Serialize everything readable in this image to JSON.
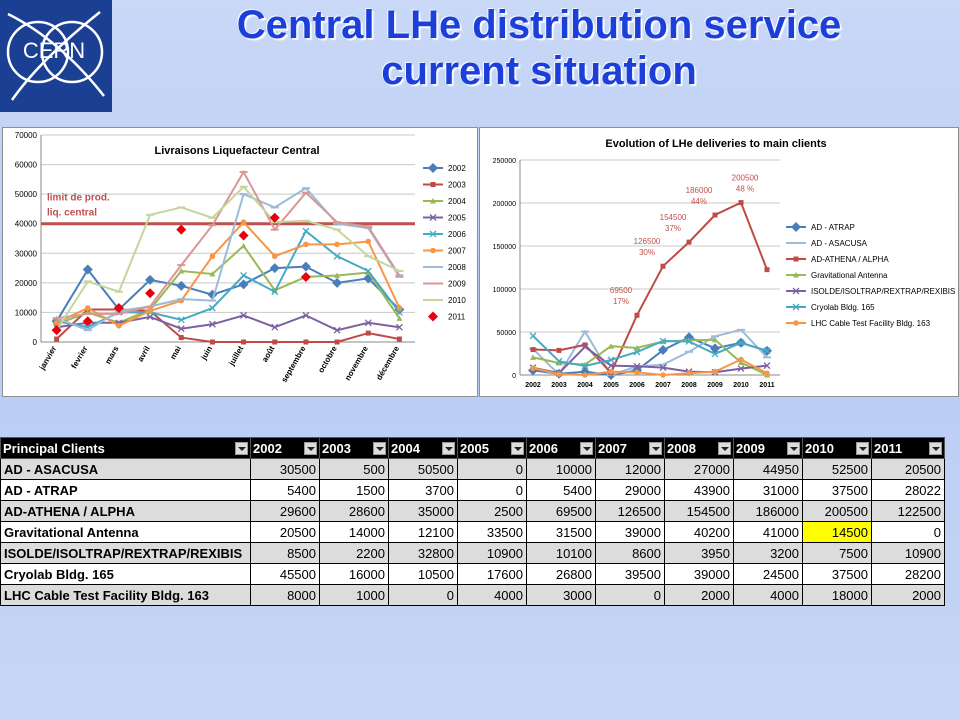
{
  "slide": {
    "title_line1": "Central LHe distribution service",
    "title_line2": "current situation",
    "logo_text": "CERN",
    "title_color": "#1b3fd8",
    "logo_bg": "#1b3f92"
  },
  "chart_data": [
    {
      "type": "line",
      "title": "Livraisons Liquefacteur Central",
      "ylim": [
        0,
        70000
      ],
      "yticks": [
        0,
        10000,
        20000,
        30000,
        40000,
        50000,
        60000,
        70000
      ],
      "categories": [
        "janvier",
        "fevrier",
        "mars",
        "avril",
        "mai",
        "juin",
        "juillet",
        "août",
        "septembre",
        "octobre",
        "novembre",
        "décembre"
      ],
      "annotation": "limit de prod. liq. central",
      "limit_value": 40000,
      "legend_position": "right",
      "grid": true,
      "series": [
        {
          "name": "2002",
          "color": "#4a7ebb",
          "values": [
            7000,
            24500,
            11000,
            21000,
            19000,
            16000,
            19500,
            25000,
            25500,
            20000,
            21500,
            11000
          ]
        },
        {
          "name": "2003",
          "color": "#be4b48",
          "values": [
            1000,
            11000,
            11000,
            10500,
            1500,
            0,
            0,
            0,
            0,
            0,
            3000,
            1000
          ]
        },
        {
          "name": "2004",
          "color": "#98b954",
          "values": [
            6000,
            10000,
            6500,
            11000,
            24000,
            23000,
            32500,
            17500,
            22000,
            22500,
            23500,
            8000
          ]
        },
        {
          "name": "2005",
          "color": "#7d60a0",
          "values": [
            5000,
            6500,
            6500,
            8500,
            4500,
            6000,
            9000,
            5000,
            9000,
            4000,
            6500,
            5000
          ]
        },
        {
          "name": "2006",
          "color": "#46aac5",
          "values": [
            7000,
            5000,
            10000,
            10000,
            7500,
            11500,
            22500,
            17000,
            37500,
            29000,
            24000,
            10000
          ]
        },
        {
          "name": "2007",
          "color": "#f79646",
          "values": [
            6500,
            11500,
            5500,
            10500,
            14000,
            29000,
            40500,
            29000,
            33000,
            33000,
            34000,
            11500
          ]
        },
        {
          "name": "2008",
          "color": "#9bbbd9",
          "values": [
            8000,
            4000,
            10500,
            12000,
            14500,
            14000,
            50000,
            45500,
            52000,
            40000,
            38500,
            22000
          ]
        },
        {
          "name": "2009",
          "color": "#d99694",
          "values": [
            8000,
            9500,
            9500,
            12000,
            26000,
            39500,
            57500,
            38000,
            50500,
            40500,
            39000,
            22500
          ]
        },
        {
          "name": "2010",
          "color": "#c3d69b",
          "values": [
            4000,
            20500,
            17000,
            43000,
            45500,
            42000,
            52500,
            40500,
            41000,
            38000,
            29000,
            24000
          ]
        },
        {
          "name": "2011",
          "color": "#e8000e",
          "marker": "diamond",
          "values": [
            4000,
            7000,
            11500,
            16500,
            38000,
            null,
            36000,
            42000,
            22000,
            null,
            null,
            null
          ]
        }
      ]
    },
    {
      "type": "line",
      "title": "Evolution of LHe deliveries to main clients",
      "ylim": [
        0,
        250000
      ],
      "yticks": [
        0,
        50000,
        100000,
        150000,
        200000,
        250000
      ],
      "categories": [
        "2002",
        "2003",
        "2004",
        "2005",
        "2006",
        "2007",
        "2008",
        "2009",
        "2010",
        "2011"
      ],
      "legend_position": "right",
      "grid": true,
      "series": [
        {
          "name": "AD - ATRAP",
          "color": "#4a7ebb",
          "values": [
            5400,
            1500,
            3700,
            0,
            5400,
            29000,
            43900,
            31000,
            37500,
            28022
          ]
        },
        {
          "name": "AD - ASACUSA",
          "color": "#9bbbd9",
          "values": [
            30500,
            500,
            50500,
            0,
            10000,
            12000,
            27000,
            44950,
            52500,
            20500
          ]
        },
        {
          "name": "AD-ATHENA / ALPHA",
          "color": "#be4b48",
          "values": [
            29600,
            28600,
            35000,
            2500,
            69500,
            126500,
            154500,
            186000,
            200500,
            122500
          ]
        },
        {
          "name": "Gravitational Antenna",
          "color": "#98b954",
          "values": [
            20500,
            14000,
            12100,
            33500,
            31500,
            39000,
            40200,
            41000,
            14500,
            0
          ]
        },
        {
          "name": "ISOLDE/ISOLTRAP/REXTRAP/REXIBIS",
          "color": "#7d60a0",
          "values": [
            8500,
            2200,
            32800,
            10900,
            10100,
            8600,
            3950,
            3200,
            7500,
            10900
          ]
        },
        {
          "name": "Cryolab Bldg. 165",
          "color": "#46aac5",
          "values": [
            45500,
            16000,
            10500,
            17600,
            26800,
            39500,
            39000,
            24500,
            37500,
            28200
          ]
        },
        {
          "name": "LHC Cable Test Facility Bldg. 163",
          "color": "#f79646",
          "values": [
            8000,
            1000,
            0,
            4000,
            3000,
            0,
            2000,
            4000,
            18000,
            2000
          ]
        }
      ],
      "labels": [
        {
          "series": "AD-ATHENA / ALPHA",
          "category": "2006",
          "text": [
            "69500",
            "17%"
          ]
        },
        {
          "series": "AD-ATHENA / ALPHA",
          "category": "2007",
          "text": [
            "126500",
            "30%"
          ]
        },
        {
          "series": "AD-ATHENA / ALPHA",
          "category": "2008",
          "text": [
            "154500",
            "37%"
          ]
        },
        {
          "series": "AD-ATHENA / ALPHA",
          "category": "2009",
          "text": [
            "186000",
            "44%"
          ]
        },
        {
          "series": "AD-ATHENA / ALPHA",
          "category": "2010",
          "text": [
            "200500",
            "48 %"
          ]
        }
      ]
    }
  ],
  "table": {
    "headers": [
      "Principal Clients",
      "2002",
      "2003",
      "2004",
      "2005",
      "2006",
      "2007",
      "2008",
      "2009",
      "2010",
      "2011"
    ],
    "rows": [
      {
        "name": "AD - ASACUSA",
        "values": [
          "30500",
          "500",
          "50500",
          "0",
          "10000",
          "12000",
          "27000",
          "44950",
          "52500",
          "20500"
        ]
      },
      {
        "name": "AD - ATRAP",
        "values": [
          "5400",
          "1500",
          "3700",
          "0",
          "5400",
          "29000",
          "43900",
          "31000",
          "37500",
          "28022"
        ]
      },
      {
        "name": "AD-ATHENA / ALPHA",
        "values": [
          "29600",
          "28600",
          "35000",
          "2500",
          "69500",
          "126500",
          "154500",
          "186000",
          "200500",
          "122500"
        ]
      },
      {
        "name": "Gravitational Antenna",
        "values": [
          "20500",
          "14000",
          "12100",
          "33500",
          "31500",
          "39000",
          "40200",
          "41000",
          "14500",
          "0"
        ]
      },
      {
        "name": "ISOLDE/ISOLTRAP/REXTRAP/REXIBIS",
        "values": [
          "8500",
          "2200",
          "32800",
          "10900",
          "10100",
          "8600",
          "3950",
          "3200",
          "7500",
          "10900"
        ]
      },
      {
        "name": "Cryolab Bldg. 165",
        "values": [
          "45500",
          "16000",
          "10500",
          "17600",
          "26800",
          "39500",
          "39000",
          "24500",
          "37500",
          "28200"
        ]
      },
      {
        "name": "LHC Cable Test Facility Bldg. 163",
        "values": [
          "8000",
          "1000",
          "0",
          "4000",
          "3000",
          "0",
          "2000",
          "4000",
          "18000",
          "2000"
        ]
      }
    ],
    "highlight": {
      "row": "Gravitational Antenna",
      "column": "2010",
      "color": "#ffff00"
    }
  }
}
